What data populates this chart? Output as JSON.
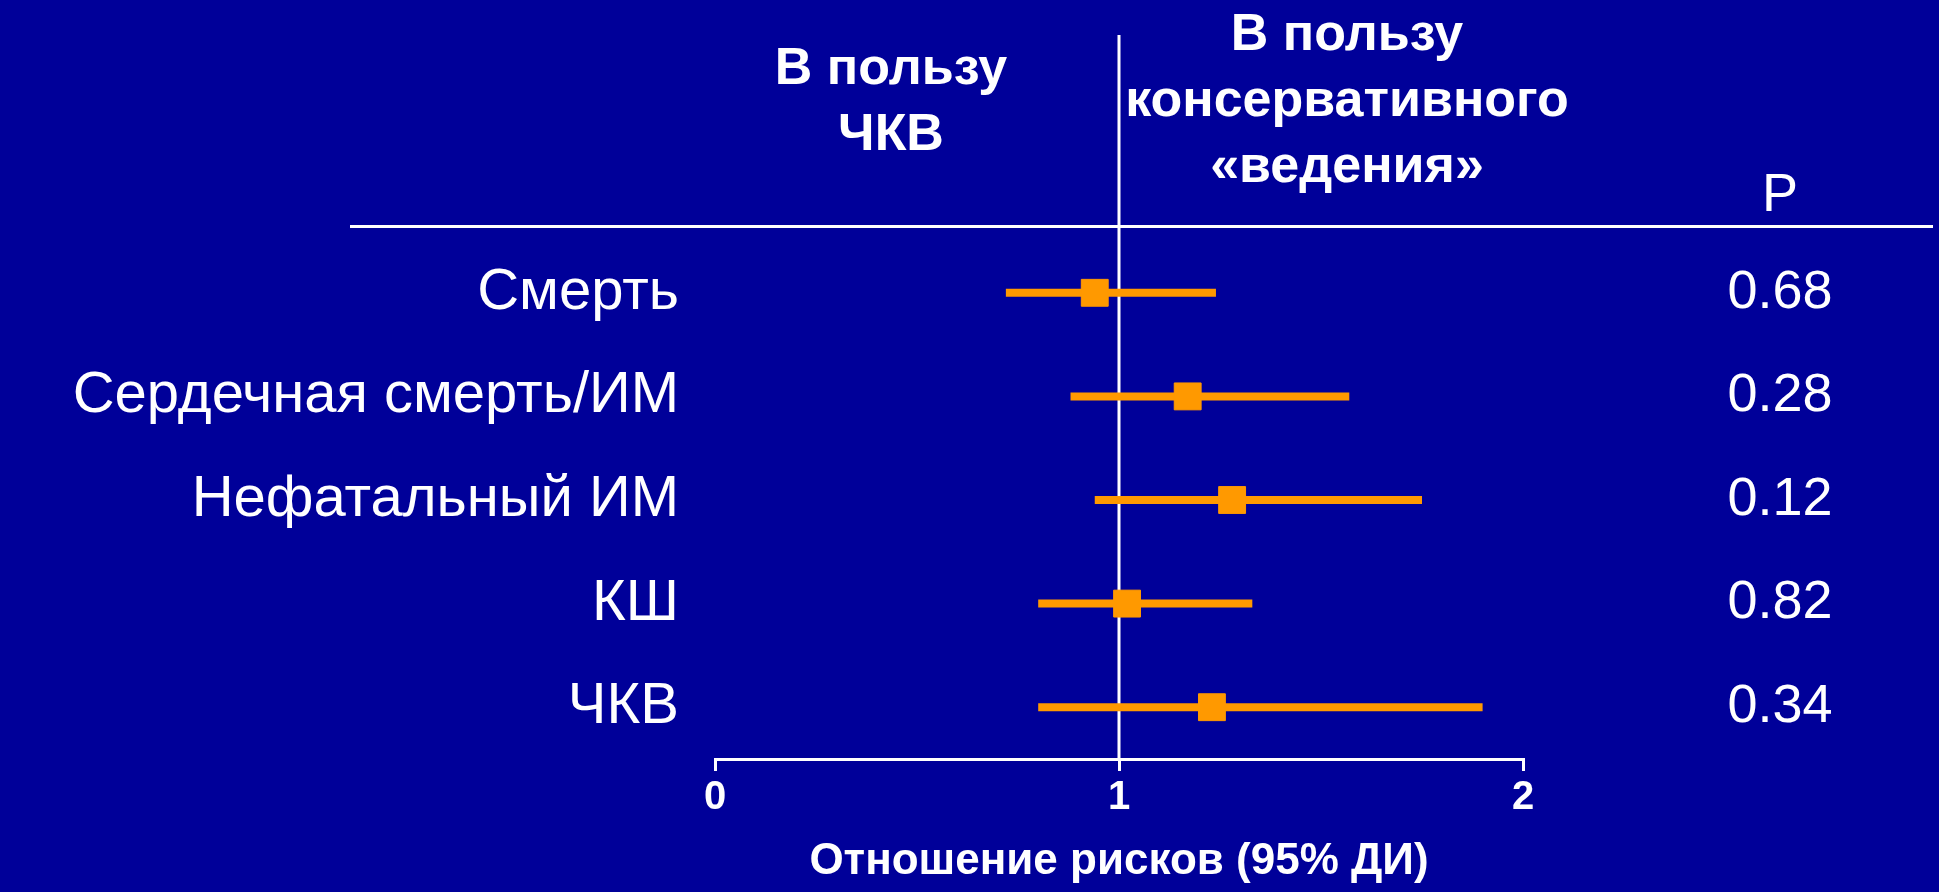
{
  "chart_data": {
    "type": "scatter",
    "categories": [
      "Смерть",
      "Сердечная смерть/ИМ",
      "Нефатальный ИМ",
      "КШ",
      "ЧКВ"
    ],
    "orientation": "horizontal",
    "values": [
      0.94,
      1.17,
      1.28,
      1.02,
      1.23
    ],
    "errors": [
      [
        0.72,
        1.24
      ],
      [
        0.88,
        1.57
      ],
      [
        0.94,
        1.75
      ],
      [
        0.8,
        1.33
      ],
      [
        0.8,
        1.9
      ]
    ],
    "color": "#ff9900",
    "marker": "square",
    "xlabel": "Отношение рисков (95% ДИ)",
    "xlim": [
      0,
      2
    ],
    "xticks": [
      0,
      1,
      2
    ],
    "ref_lines": [
      {
        "axis": "x",
        "value": 1,
        "color": "#ffffff"
      }
    ],
    "annotations": [
      "В пользу ЧКВ",
      "В пользу консервативного «ведения»",
      "P",
      "0.68",
      "0.28",
      "0.12",
      "0.82",
      "0.34"
    ],
    "grid": false,
    "legend": false
  }
}
